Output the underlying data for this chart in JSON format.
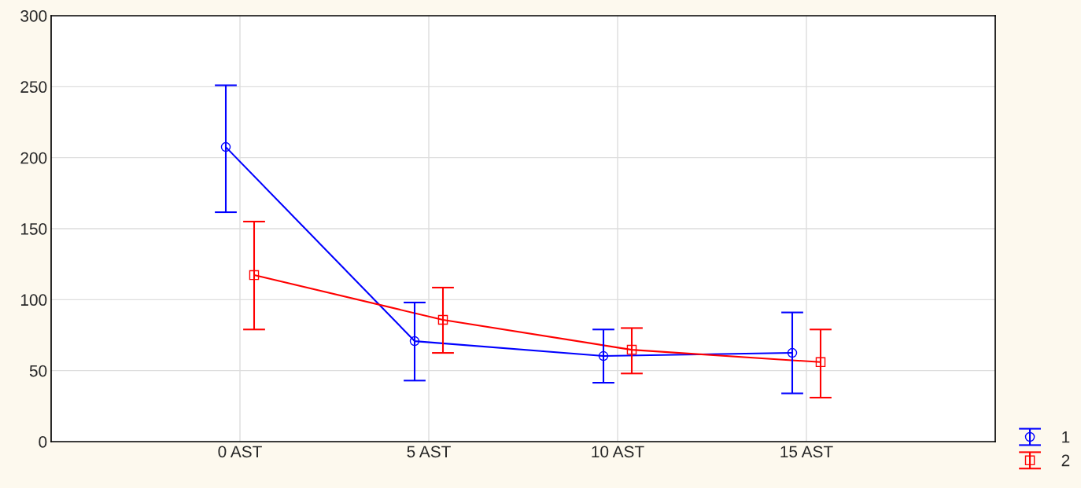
{
  "chart_data": {
    "type": "line",
    "categories": [
      "0 AST",
      "5 AST",
      "10 AST",
      "15 AST"
    ],
    "series": [
      {
        "name": "1",
        "color": "#0000ff",
        "marker": "circle",
        "values": [
          207.5,
          70.8,
          60.3,
          62.5
        ],
        "errors": [
          [
            161.6,
            251
          ],
          [
            43,
            98
          ],
          [
            41.5,
            79
          ],
          [
            34,
            91
          ]
        ]
      },
      {
        "name": "2",
        "color": "#ff0000",
        "marker": "square",
        "values": [
          117.3,
          85.8,
          64.7,
          56
        ],
        "errors": [
          [
            79,
            155
          ],
          [
            62.5,
            108.5
          ],
          [
            48,
            80
          ],
          [
            31,
            79
          ]
        ]
      }
    ],
    "ylim": [
      0,
      300
    ],
    "yticks": [
      0,
      50,
      100,
      150,
      200,
      250,
      300
    ],
    "grid": true,
    "legend": "bottom right"
  }
}
